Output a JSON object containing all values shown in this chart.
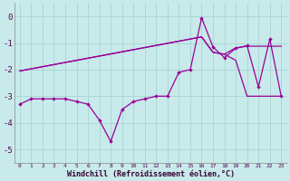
{
  "xlabel": "Windchill (Refroidissement éolien,°C)",
  "background_color": "#c8eaea",
  "grid_color": "#a8d4d4",
  "line_color": "#990099",
  "x": [
    0,
    1,
    2,
    3,
    4,
    5,
    6,
    7,
    8,
    9,
    10,
    11,
    12,
    13,
    14,
    15,
    16,
    17,
    18,
    19,
    20,
    21,
    22,
    23
  ],
  "y_main": [
    -3.3,
    -3.1,
    -3.1,
    -3.1,
    -3.1,
    -3.2,
    -3.3,
    -3.9,
    -4.7,
    -3.5,
    -3.2,
    -3.1,
    -3.0,
    -3.0,
    -2.1,
    -2.0,
    -0.05,
    -1.15,
    -1.55,
    -1.2,
    -1.1,
    -2.65,
    -0.85,
    -3.0
  ],
  "y_trend1": [
    -2.05,
    -1.97,
    -1.89,
    -1.81,
    -1.73,
    -1.65,
    -1.57,
    -1.49,
    -1.41,
    -1.33,
    -1.25,
    -1.17,
    -1.09,
    -1.01,
    -0.93,
    -0.85,
    -0.77,
    -1.35,
    -1.42,
    -1.18,
    -1.12,
    -1.12,
    -1.12,
    -1.12
  ],
  "y_trend2": [
    -2.05,
    -1.97,
    -1.89,
    -1.81,
    -1.73,
    -1.65,
    -1.57,
    -1.49,
    -1.41,
    -1.33,
    -1.25,
    -1.17,
    -1.09,
    -1.01,
    -0.93,
    -0.85,
    -0.77,
    -1.35,
    -1.42,
    -1.65,
    -3.0,
    -3.0,
    -3.0,
    -3.0
  ],
  "ylim": [
    -5.5,
    0.5
  ],
  "xlim": [
    -0.5,
    23.5
  ],
  "yticks": [
    0,
    -1,
    -2,
    -3,
    -4,
    -5
  ],
  "figsize": [
    3.2,
    2.0
  ],
  "dpi": 100
}
